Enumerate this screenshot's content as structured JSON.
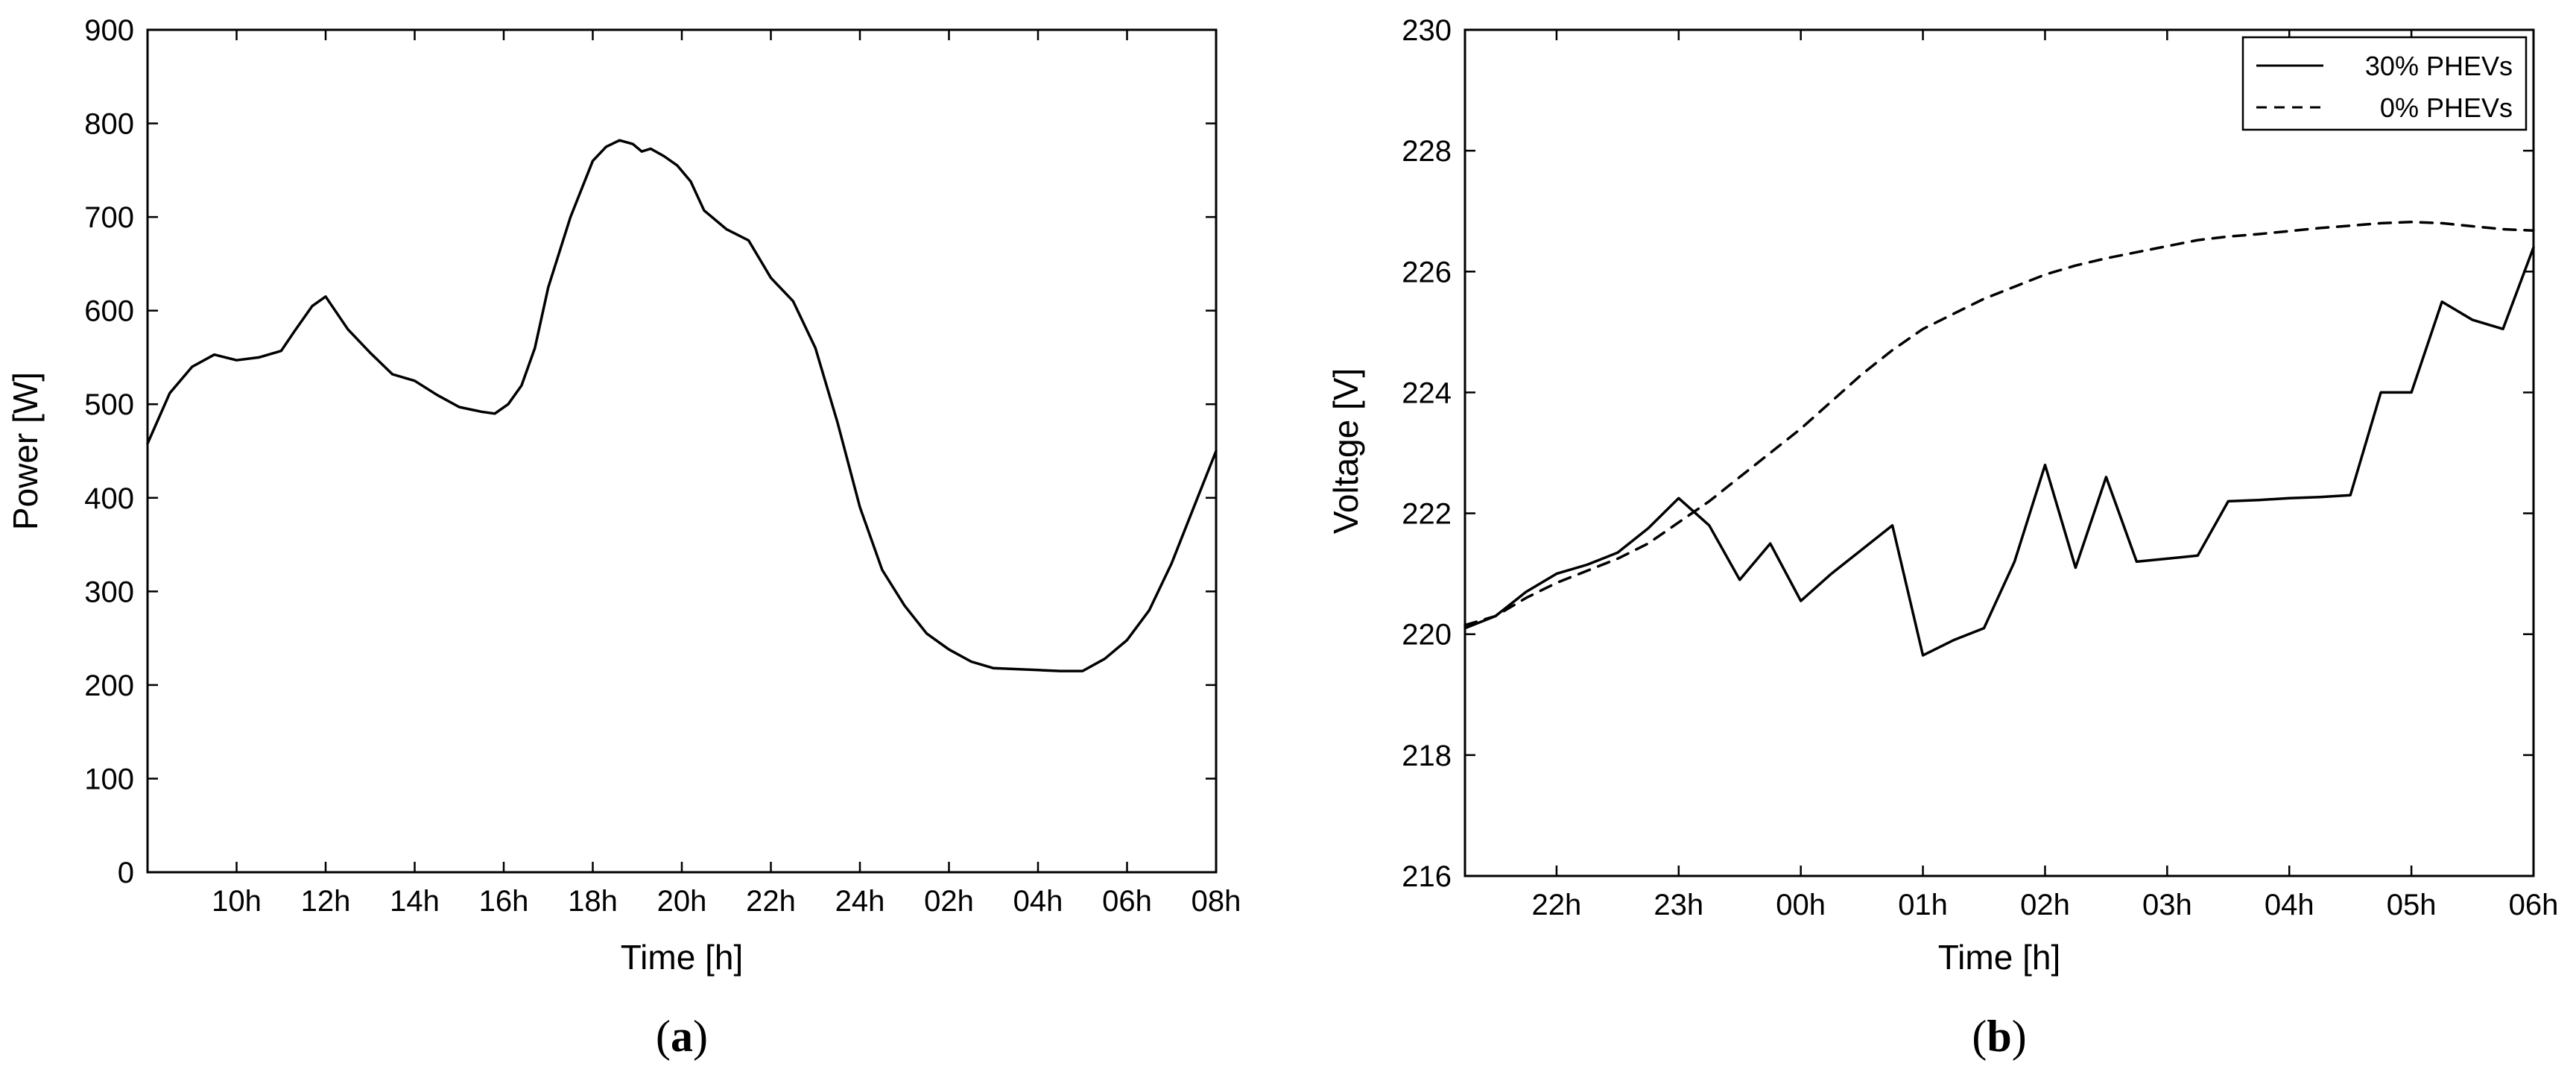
{
  "chart_data": [
    {
      "type": "line",
      "panel_label": "a",
      "xlabel": "Time [h]",
      "ylabel": "Power [W]",
      "xlim": [
        8,
        32
      ],
      "ylim": [
        0,
        900
      ],
      "xticks": [
        10,
        12,
        14,
        16,
        18,
        20,
        22,
        24,
        26,
        28,
        30,
        32
      ],
      "xtick_labels": [
        "10h",
        "12h",
        "14h",
        "16h",
        "18h",
        "20h",
        "22h",
        "24h",
        "02h",
        "04h",
        "06h",
        "08h"
      ],
      "yticks": [
        0,
        100,
        200,
        300,
        400,
        500,
        600,
        700,
        800,
        900
      ],
      "ytick_labels": [
        "0",
        "100",
        "200",
        "300",
        "400",
        "500",
        "600",
        "700",
        "800",
        "900"
      ],
      "grid": false,
      "series": [
        {
          "style": "solid",
          "x": [
            8.0,
            8.5,
            9.0,
            9.5,
            10.0,
            10.5,
            11.0,
            11.3,
            11.7,
            12.0,
            12.5,
            13.0,
            13.5,
            14.0,
            14.5,
            15.0,
            15.5,
            15.8,
            16.1,
            16.4,
            16.7,
            17.0,
            17.5,
            18.0,
            18.3,
            18.6,
            18.9,
            19.1,
            19.3,
            19.6,
            19.9,
            20.2,
            20.5,
            21.0,
            21.5,
            22.0,
            22.5,
            23.0,
            23.5,
            24.0,
            24.5,
            25.0,
            25.5,
            26.0,
            26.5,
            27.0,
            27.5,
            28.0,
            28.5,
            29.0,
            29.5,
            30.0,
            30.5,
            31.0,
            31.5,
            32.0
          ],
          "y": [
            458,
            512,
            540,
            553,
            547,
            550,
            557,
            578,
            605,
            615,
            580,
            555,
            532,
            525,
            510,
            497,
            492,
            490,
            500,
            520,
            560,
            625,
            700,
            760,
            775,
            782,
            778,
            770,
            773,
            765,
            755,
            738,
            707,
            687,
            675,
            635,
            610,
            560,
            480,
            390,
            323,
            285,
            255,
            238,
            225,
            218,
            217,
            216,
            215,
            215,
            228,
            248,
            280,
            330,
            390,
            450
          ]
        }
      ]
    },
    {
      "type": "line",
      "panel_label": "b",
      "xlabel": "Time [h]",
      "ylabel": "Voltage [V]",
      "xlim": [
        21.25,
        30.0
      ],
      "ylim": [
        216,
        230
      ],
      "xticks": [
        22,
        23,
        24,
        25,
        26,
        27,
        28,
        29,
        30
      ],
      "xtick_labels": [
        "22h",
        "23h",
        "00h",
        "01h",
        "02h",
        "03h",
        "04h",
        "05h",
        "06h"
      ],
      "yticks": [
        216,
        218,
        220,
        222,
        224,
        226,
        228,
        230
      ],
      "ytick_labels": [
        "216",
        "218",
        "220",
        "222",
        "224",
        "226",
        "228",
        "230"
      ],
      "grid": false,
      "legend_position": "top-right",
      "series": [
        {
          "name": "30% PHEVs",
          "style": "solid",
          "x": [
            21.25,
            21.5,
            21.75,
            22.0,
            22.25,
            22.5,
            22.75,
            23.0,
            23.25,
            23.5,
            23.75,
            24.0,
            24.25,
            24.5,
            24.75,
            25.0,
            25.25,
            25.5,
            25.75,
            26.0,
            26.25,
            26.5,
            26.75,
            27.0,
            27.25,
            27.5,
            27.75,
            28.0,
            28.25,
            28.5,
            28.75,
            29.0,
            29.25,
            29.5,
            29.75,
            30.0
          ],
          "y": [
            220.1,
            220.3,
            220.7,
            221.0,
            221.15,
            221.35,
            221.75,
            222.25,
            221.8,
            220.9,
            221.5,
            220.55,
            221.0,
            221.4,
            221.8,
            219.65,
            219.9,
            220.1,
            221.2,
            222.8,
            221.1,
            222.6,
            221.2,
            221.25,
            221.3,
            222.2,
            222.22,
            222.25,
            222.27,
            222.3,
            224.0,
            224.0,
            225.5,
            225.2,
            225.05,
            226.4
          ]
        },
        {
          "name": "0% PHEVs",
          "style": "dashed",
          "x": [
            21.25,
            21.5,
            21.75,
            22.0,
            22.25,
            22.5,
            22.75,
            23.0,
            23.25,
            23.5,
            23.75,
            24.0,
            24.25,
            24.5,
            24.75,
            25.0,
            25.25,
            25.5,
            25.75,
            26.0,
            26.25,
            26.5,
            26.75,
            27.0,
            27.25,
            27.5,
            27.75,
            28.0,
            28.25,
            28.5,
            28.75,
            29.0,
            29.25,
            29.5,
            29.75,
            30.0
          ],
          "y": [
            220.15,
            220.3,
            220.6,
            220.85,
            221.05,
            221.25,
            221.5,
            221.85,
            222.2,
            222.6,
            223.0,
            223.4,
            223.85,
            224.3,
            224.7,
            225.05,
            225.3,
            225.55,
            225.75,
            225.95,
            226.1,
            226.22,
            226.32,
            226.42,
            226.52,
            226.58,
            226.62,
            226.67,
            226.72,
            226.76,
            226.8,
            226.82,
            226.8,
            226.75,
            226.7,
            226.68
          ]
        }
      ]
    }
  ]
}
